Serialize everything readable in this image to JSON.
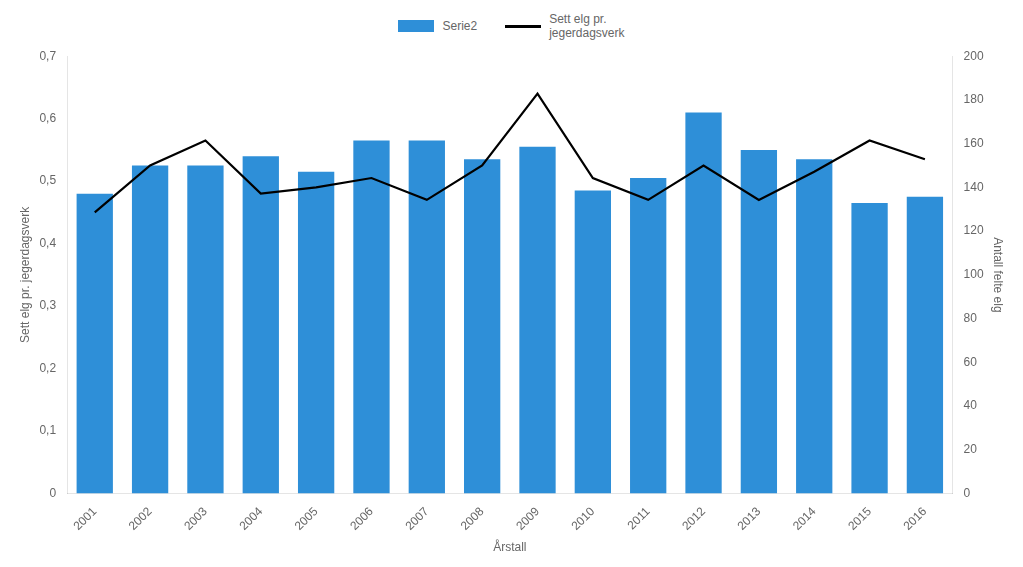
{
  "chart_data": {
    "type": "bar",
    "categories": [
      "2001",
      "2002",
      "2003",
      "2004",
      "2005",
      "2006",
      "2007",
      "2008",
      "2009",
      "2010",
      "2011",
      "2012",
      "2013",
      "2014",
      "2015",
      "2016"
    ],
    "series": [
      {
        "name": "Serie2",
        "type": "bar",
        "color": "#2E8FD8",
        "values": [
          0.48,
          0.525,
          0.525,
          0.54,
          0.515,
          0.565,
          0.565,
          0.535,
          0.555,
          0.485,
          0.505,
          0.61,
          0.55,
          0.535,
          0.465,
          0.475
        ]
      },
      {
        "name": "Sett elg pr.\njegerdagsverk",
        "type": "line",
        "color": "#000000",
        "marker": "none",
        "values": [
          0.45,
          0.525,
          0.565,
          0.48,
          0.49,
          0.505,
          0.47,
          0.525,
          0.64,
          0.505,
          0.47,
          0.525,
          0.47,
          0.515,
          0.565,
          0.535
        ]
      }
    ],
    "x_label": "Årstall",
    "y_label": "Sett elg pr. jegerdagsverk",
    "y2_label": "Antall felte elg",
    "ylim": [
      0,
      0.7
    ],
    "yticks": [
      0,
      {
        "value": 0.1,
        "label": "0,1"
      },
      {
        "value": 0.2,
        "label": "0,2"
      },
      {
        "value": 0.3,
        "label": "0,3"
      },
      {
        "value": 0.4,
        "label": "0,4"
      },
      {
        "value": 0.5,
        "label": "0,5"
      },
      {
        "value": 0.6,
        "label": "0,6"
      },
      {
        "value": 0.7,
        "label": "0,7"
      }
    ],
    "y2lim": [
      0,
      200
    ],
    "y2ticks": [
      0,
      20,
      40,
      60,
      80,
      100,
      120,
      140,
      160,
      180,
      200
    ],
    "grid": false,
    "legend": "top"
  }
}
